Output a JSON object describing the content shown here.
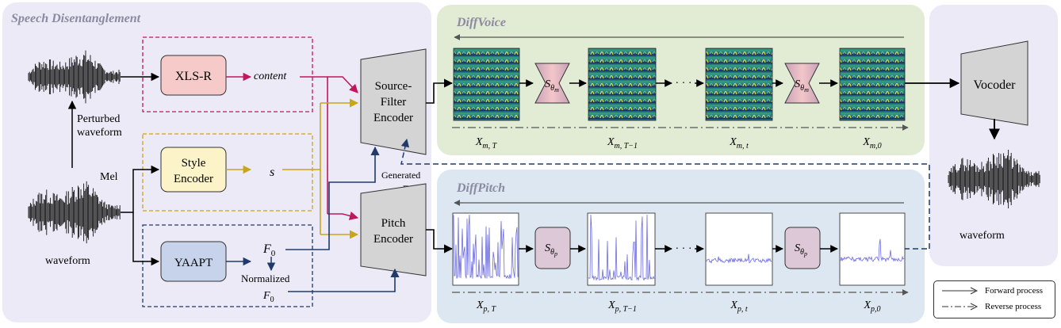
{
  "panels": {
    "speech_disentanglement": "Speech Disentanglement",
    "diffvoice": "DiffVoice",
    "diffpitch": "DiffPitch"
  },
  "waveforms": {
    "perturbed": [
      "Perturbed",
      "waveform"
    ],
    "input": "waveform",
    "output": "waveform",
    "mel": "Mel"
  },
  "modules": {
    "xlsr": "XLS-R",
    "style_encoder": [
      "Style",
      "Encoder"
    ],
    "yaapt": "YAAPT",
    "source_filter_encoder": [
      "Source-",
      "Filter",
      "Encoder"
    ],
    "pitch_encoder": [
      "Pitch",
      "Encoder"
    ],
    "vocoder": "Vocoder"
  },
  "features": {
    "content": "content",
    "style": "s",
    "f0": "F",
    "f0_sub": "0",
    "normalized": "Normalized",
    "generated": "Generated"
  },
  "diffvoice_labels": [
    {
      "base": "X",
      "sub": "m, T"
    },
    {
      "base": "X",
      "sub": "m, T−1"
    },
    {
      "base": "X",
      "sub": "m, t"
    },
    {
      "base": "X",
      "sub": "m,0"
    }
  ],
  "diffpitch_labels": [
    {
      "base": "X",
      "sub": "p, T"
    },
    {
      "base": "X",
      "sub": "p, T−1"
    },
    {
      "base": "X",
      "sub": "p, t"
    },
    {
      "base": "X",
      "sub": "p,0"
    }
  ],
  "score_net": {
    "base": "S",
    "sub": "θ",
    "m": "m",
    "p": "p"
  },
  "ellipsis": "· · ·",
  "legend": {
    "forward": "Forward process",
    "reverse": "Reverse process"
  },
  "colors": {
    "panel_left": "#ebeaf6",
    "panel_diffvoice": "#e2ecd5",
    "panel_diffpitch": "#dde7f1",
    "panel_right": "#ebeaf6",
    "content_path": "#c0185a",
    "style_path": "#c9a51b",
    "pitch_path": "#1f3a6b",
    "xlsr_fill": "#f7caca",
    "style_fill": "#fdf3c8",
    "yaapt_fill": "#c7d3ea",
    "encoder_fill": "#d4d4d4",
    "pitch_line": "#6b6be0"
  }
}
